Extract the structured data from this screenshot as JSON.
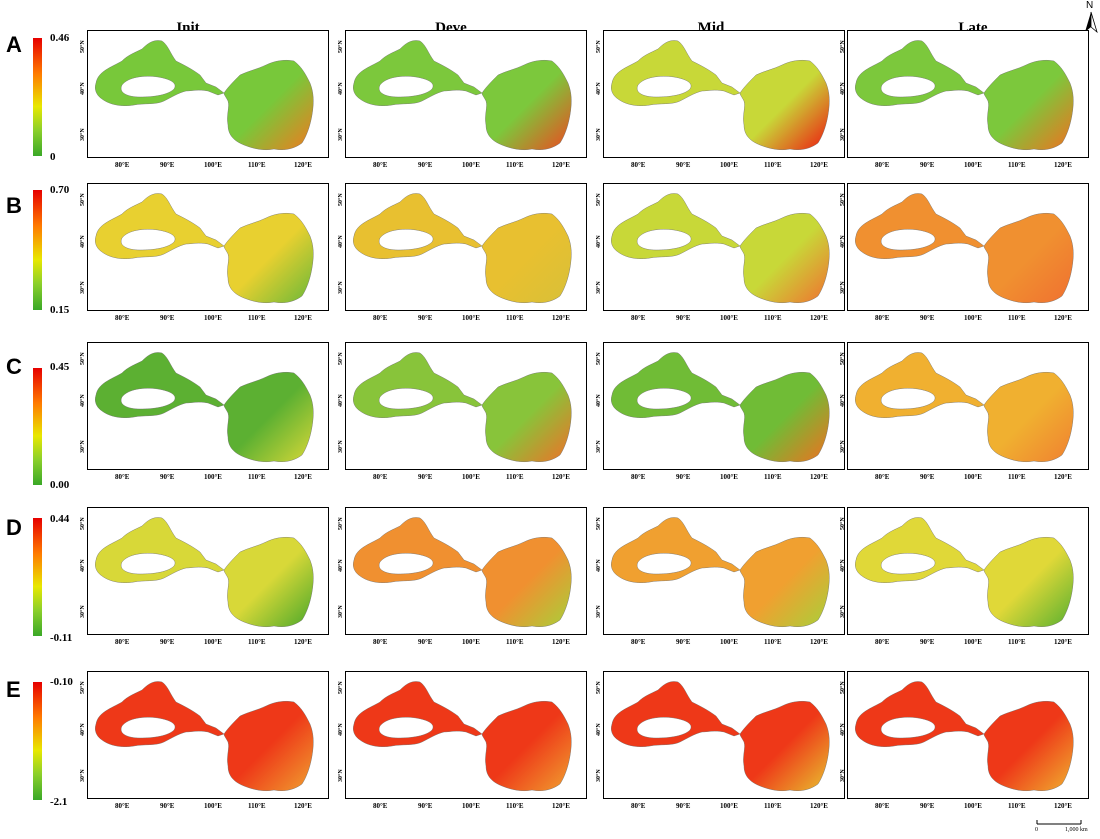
{
  "columns": [
    "Init",
    "Deve",
    "Mid",
    "Late"
  ],
  "rows": [
    {
      "letter": "A",
      "max": "0.46",
      "min": "0"
    },
    {
      "letter": "B",
      "max": "0.70",
      "min": "0.15"
    },
    {
      "letter": "C",
      "max": "0.45",
      "min": "0.00"
    },
    {
      "letter": "D",
      "max": "0.44",
      "min": "-0.11"
    },
    {
      "letter": "E",
      "max": "-0.10",
      "min": "-2.1"
    }
  ],
  "x_ticks": [
    "80°E",
    "90°E",
    "100°E",
    "110°E",
    "120°E"
  ],
  "y_ticks": [
    "50°N",
    "40°N",
    "30°N"
  ],
  "north_label": "N",
  "scale_bar": {
    "zero": "0",
    "distance": "1,000 km"
  },
  "colors": {
    "high": "#e60000",
    "mid_high": "#ff7a00",
    "mid": "#e8e800",
    "mid_low": "#8cd02a",
    "low": "#3aa828"
  },
  "map_fill": {
    "A": [
      [
        "#78c83a",
        "#f07a20"
      ],
      [
        "#7cc83c",
        "#ee4820"
      ],
      [
        "#c8d838",
        "#ee1810"
      ],
      [
        "#7cc83c",
        "#f07020"
      ]
    ],
    "B": [
      [
        "#e8d030",
        "#6ab838"
      ],
      [
        "#e8c030",
        "#d8c038"
      ],
      [
        "#c8d838",
        "#f07030"
      ],
      [
        "#f09030",
        "#f07030"
      ]
    ],
    "C": [
      [
        "#5cb032",
        "#d8d838"
      ],
      [
        "#88c43a",
        "#f07028"
      ],
      [
        "#70bc36",
        "#f07020"
      ],
      [
        "#f0b030",
        "#f08030"
      ]
    ],
    "D": [
      [
        "#d8d838",
        "#4aa82a"
      ],
      [
        "#f09030",
        "#a8d03a"
      ],
      [
        "#f0a030",
        "#a8d03a"
      ],
      [
        "#e0d838",
        "#58b030"
      ]
    ],
    "E": [
      [
        "#ee3818",
        "#f0a030"
      ],
      [
        "#ee3818",
        "#f0a030"
      ],
      [
        "#ee3818",
        "#e8c030"
      ],
      [
        "#ee3818",
        "#f0b030"
      ]
    ]
  }
}
